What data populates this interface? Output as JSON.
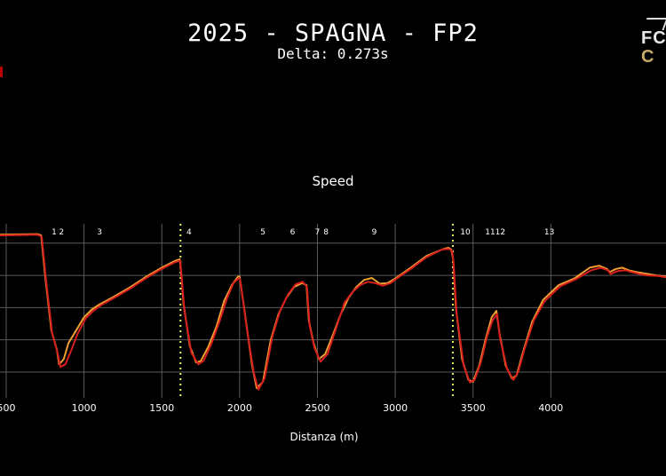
{
  "header": {
    "title": "2025 - SPAGNA - FP2",
    "subtitle": "Delta: 0.273s",
    "logo_line1": "FC",
    "logo_line2": "C"
  },
  "chart_data": {
    "type": "line",
    "title": "Speed",
    "xlabel": "Distanza (m)",
    "ylabel": "",
    "xlim": [
      460,
      4740
    ],
    "ylim": [
      60,
      330
    ],
    "x_ticks": [
      500,
      1000,
      1500,
      2000,
      2500,
      3000,
      3500,
      4000
    ],
    "x_tick_labels": [
      "500",
      "1000",
      "1500",
      "2000",
      "2500",
      "3000",
      "3500",
      "4000"
    ],
    "y_grid": [
      100,
      150,
      200,
      250,
      300
    ],
    "grid": true,
    "sector_lines": [
      1620,
      3370
    ],
    "corners": [
      {
        "label": "1",
        "x": 808
      },
      {
        "label": "2",
        "x": 855
      },
      {
        "label": "3",
        "x": 1100
      },
      {
        "label": "4",
        "x": 1675
      },
      {
        "label": "5",
        "x": 2150
      },
      {
        "label": "6",
        "x": 2340
      },
      {
        "label": "7",
        "x": 2500
      },
      {
        "label": "8",
        "x": 2555
      },
      {
        "label": "9",
        "x": 2865
      },
      {
        "label": "10",
        "x": 3450
      },
      {
        "label": "11",
        "x": 3610
      },
      {
        "label": "12",
        "x": 3675
      },
      {
        "label": "13",
        "x": 3990
      }
    ],
    "series": [
      {
        "color": "#f0a030",
        "points": [
          [
            460,
            313
          ],
          [
            700,
            314
          ],
          [
            725,
            312
          ],
          [
            750,
            250
          ],
          [
            790,
            165
          ],
          [
            825,
            135
          ],
          [
            840,
            112
          ],
          [
            870,
            120
          ],
          [
            900,
            145
          ],
          [
            950,
            165
          ],
          [
            1000,
            185
          ],
          [
            1050,
            197
          ],
          [
            1100,
            205
          ],
          [
            1200,
            218
          ],
          [
            1300,
            232
          ],
          [
            1400,
            248
          ],
          [
            1500,
            262
          ],
          [
            1580,
            272
          ],
          [
            1615,
            275
          ],
          [
            1622,
            260
          ],
          [
            1640,
            205
          ],
          [
            1680,
            140
          ],
          [
            1720,
            115
          ],
          [
            1750,
            117
          ],
          [
            1800,
            140
          ],
          [
            1850,
            170
          ],
          [
            1900,
            210
          ],
          [
            1950,
            235
          ],
          [
            1990,
            248
          ],
          [
            2000,
            248
          ],
          [
            2040,
            180
          ],
          [
            2080,
            110
          ],
          [
            2110,
            75
          ],
          [
            2150,
            85
          ],
          [
            2200,
            150
          ],
          [
            2250,
            190
          ],
          [
            2300,
            215
          ],
          [
            2350,
            232
          ],
          [
            2400,
            238
          ],
          [
            2430,
            235
          ],
          [
            2445,
            180
          ],
          [
            2475,
            145
          ],
          [
            2510,
            120
          ],
          [
            2550,
            128
          ],
          [
            2600,
            158
          ],
          [
            2650,
            190
          ],
          [
            2700,
            215
          ],
          [
            2750,
            232
          ],
          [
            2800,
            243
          ],
          [
            2850,
            246
          ],
          [
            2900,
            237
          ],
          [
            2950,
            238
          ],
          [
            3000,
            245
          ],
          [
            3100,
            262
          ],
          [
            3200,
            280
          ],
          [
            3300,
            290
          ],
          [
            3340,
            293
          ],
          [
            3360,
            290
          ],
          [
            3372,
            275
          ],
          [
            3390,
            200
          ],
          [
            3430,
            120
          ],
          [
            3470,
            88
          ],
          [
            3500,
            85
          ],
          [
            3540,
            110
          ],
          [
            3580,
            150
          ],
          [
            3620,
            185
          ],
          [
            3650,
            195
          ],
          [
            3670,
            160
          ],
          [
            3710,
            110
          ],
          [
            3750,
            90
          ],
          [
            3780,
            95
          ],
          [
            3820,
            130
          ],
          [
            3880,
            178
          ],
          [
            3950,
            212
          ],
          [
            4050,
            235
          ],
          [
            4150,
            245
          ],
          [
            4250,
            262
          ],
          [
            4310,
            265
          ],
          [
            4360,
            260
          ],
          [
            4380,
            255
          ],
          [
            4400,
            258
          ],
          [
            4420,
            260
          ],
          [
            4460,
            262
          ],
          [
            4500,
            258
          ],
          [
            4550,
            255
          ],
          [
            4600,
            253
          ],
          [
            4680,
            250
          ],
          [
            4740,
            248
          ]
        ]
      },
      {
        "color": "#d81e1e",
        "points": [
          [
            460,
            312
          ],
          [
            700,
            313
          ],
          [
            728,
            310
          ],
          [
            755,
            245
          ],
          [
            795,
            160
          ],
          [
            830,
            130
          ],
          [
            848,
            108
          ],
          [
            880,
            112
          ],
          [
            915,
            132
          ],
          [
            960,
            160
          ],
          [
            1010,
            183
          ],
          [
            1060,
            195
          ],
          [
            1110,
            204
          ],
          [
            1200,
            216
          ],
          [
            1300,
            230
          ],
          [
            1400,
            246
          ],
          [
            1500,
            260
          ],
          [
            1580,
            270
          ],
          [
            1618,
            273
          ],
          [
            1625,
            255
          ],
          [
            1645,
            195
          ],
          [
            1690,
            130
          ],
          [
            1735,
            112
          ],
          [
            1770,
            118
          ],
          [
            1820,
            145
          ],
          [
            1870,
            178
          ],
          [
            1920,
            215
          ],
          [
            1960,
            238
          ],
          [
            1995,
            246
          ],
          [
            2003,
            244
          ],
          [
            2045,
            170
          ],
          [
            2090,
            100
          ],
          [
            2120,
            73
          ],
          [
            2160,
            90
          ],
          [
            2210,
            155
          ],
          [
            2260,
            195
          ],
          [
            2310,
            220
          ],
          [
            2360,
            236
          ],
          [
            2405,
            240
          ],
          [
            2433,
            232
          ],
          [
            2450,
            172
          ],
          [
            2480,
            138
          ],
          [
            2520,
            116
          ],
          [
            2565,
            128
          ],
          [
            2620,
            168
          ],
          [
            2675,
            208
          ],
          [
            2725,
            224
          ],
          [
            2775,
            235
          ],
          [
            2825,
            240
          ],
          [
            2870,
            238
          ],
          [
            2920,
            234
          ],
          [
            2970,
            238
          ],
          [
            3020,
            247
          ],
          [
            3100,
            260
          ],
          [
            3200,
            278
          ],
          [
            3300,
            290
          ],
          [
            3345,
            291
          ],
          [
            3365,
            288
          ],
          [
            3375,
            270
          ],
          [
            3395,
            190
          ],
          [
            3440,
            110
          ],
          [
            3480,
            84
          ],
          [
            3510,
            88
          ],
          [
            3550,
            115
          ],
          [
            3590,
            155
          ],
          [
            3625,
            180
          ],
          [
            3655,
            190
          ],
          [
            3675,
            150
          ],
          [
            3720,
            104
          ],
          [
            3760,
            88
          ],
          [
            3790,
            100
          ],
          [
            3830,
            135
          ],
          [
            3890,
            180
          ],
          [
            3960,
            210
          ],
          [
            4060,
            233
          ],
          [
            4160,
            244
          ],
          [
            4260,
            258
          ],
          [
            4320,
            262
          ],
          [
            4365,
            258
          ],
          [
            4385,
            252
          ],
          [
            4410,
            255
          ],
          [
            4440,
            257
          ],
          [
            4480,
            258
          ],
          [
            4520,
            255
          ],
          [
            4570,
            252
          ],
          [
            4620,
            250
          ],
          [
            4690,
            249
          ],
          [
            4740,
            247
          ]
        ]
      }
    ]
  }
}
